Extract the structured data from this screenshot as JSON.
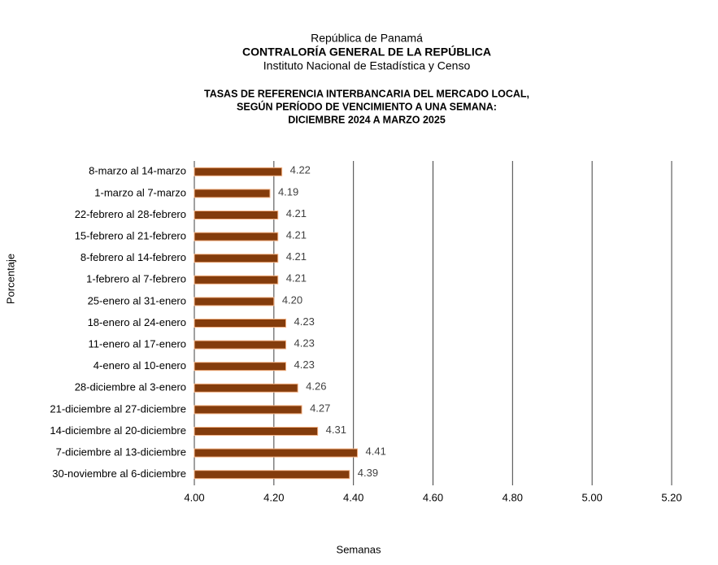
{
  "chart_data": {
    "type": "barh",
    "header": [
      "República de Panamá",
      "CONTRALORÍA GENERAL DE LA REPÚBLICA",
      "Instituto Nacional de Estadística y Censo"
    ],
    "title": [
      "TASAS DE REFERENCIA INTERBANCARIA  DEL MERCADO LOCAL,",
      "SEGÚN PERÍODO DE VENCIMIENTO  A UNA SEMANA:",
      "DICIEMBRE 2024 A MARZO 2025"
    ],
    "xlabel": "Semanas",
    "ylabel": "Porcentaje",
    "categories": [
      "8-marzo al 14-marzo",
      "1-marzo al 7-marzo",
      "22-febrero al 28-febrero",
      "15-febrero al 21-febrero",
      "8-febrero al 14-febrero",
      "1-febrero al 7-febrero",
      "25-enero al 31-enero",
      "18-enero al 24-enero",
      "11-enero al 17-enero",
      "4-enero al 10-enero",
      "28-diciembre al 3-enero",
      "21-diciembre al 27-diciembre",
      "14-diciembre al 20-diciembre",
      "7-diciembre al 13-diciembre",
      "30-noviembre al 6-diciembre"
    ],
    "values": [
      4.22,
      4.19,
      4.21,
      4.21,
      4.21,
      4.21,
      4.2,
      4.23,
      4.23,
      4.23,
      4.26,
      4.27,
      4.31,
      4.41,
      4.39
    ],
    "value_labels": [
      "4.22",
      "4.19",
      "4.21",
      "4.21",
      "4.21",
      "4.21",
      "4.20",
      "4.23",
      "4.23",
      "4.23",
      "4.26",
      "4.27",
      "4.31",
      "4.41",
      "4.39"
    ],
    "color": "#843c0c",
    "edge_color": "#f4b183",
    "xlim": [
      4,
      5.2
    ],
    "xticks": [
      {
        "value": 4,
        "label": "4.00"
      },
      {
        "value": 4.2,
        "label": "4.20"
      },
      {
        "value": 4.4,
        "label": "4.40"
      },
      {
        "value": 4.6,
        "label": "4.60"
      },
      {
        "value": 4.8,
        "label": "4.80"
      },
      {
        "value": 5,
        "label": "5.00"
      },
      {
        "value": 5.2,
        "label": "5.20"
      }
    ],
    "grid": true
  }
}
